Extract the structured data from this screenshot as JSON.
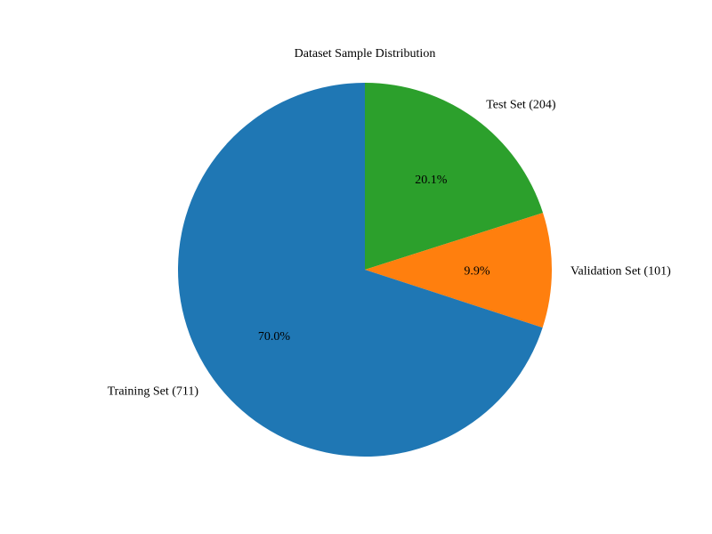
{
  "chart_data": {
    "type": "pie",
    "title": "Dataset Sample Distribution",
    "start_angle_deg": 90,
    "direction": "clockwise",
    "slices": [
      {
        "label": "Test Set (204)",
        "value": 204,
        "pct_label": "20.1%",
        "color": "#2ca02c"
      },
      {
        "label": "Validation Set (101)",
        "value": 101,
        "pct_label": "9.9%",
        "color": "#ff7f0e"
      },
      {
        "label": "Training Set (711)",
        "value": 711,
        "pct_label": "70.0%",
        "color": "#1f77b4"
      }
    ]
  }
}
